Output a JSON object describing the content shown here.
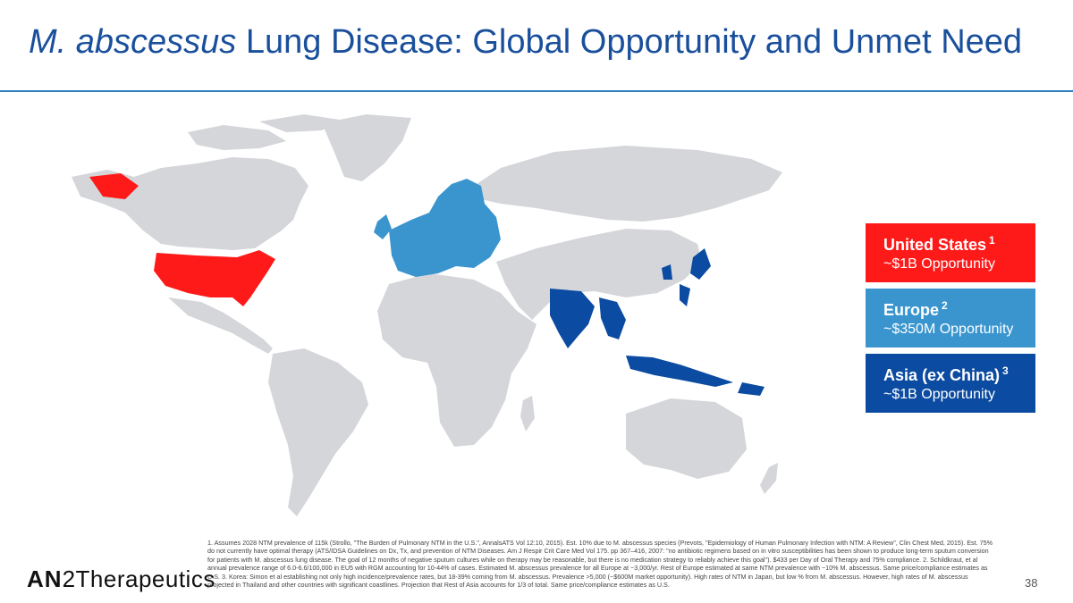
{
  "title": {
    "italic": "M. abscessus",
    "rest": " Lung Disease: Global Opportunity and Unmet Need"
  },
  "map_legend": [
    {
      "region": "United States",
      "note": "1",
      "value": "~$1B Opportunity",
      "color": "#ff1a1a"
    },
    {
      "region": "Europe",
      "note": "2",
      "value": "~$350M Opportunity",
      "color": "#3a95cf"
    },
    {
      "region": "Asia (ex China)",
      "note": "3",
      "value": "~$1B Opportunity",
      "color": "#0b4ba1"
    }
  ],
  "footnote": "1. Assumes 2028 NTM prevalence of 115k (Strollo, \"The Burden of Pulmonary NTM in the U.S.\", AnnalsATS Vol 12:10, 2015). Est. 10% due to M. abscessus species (Prevots, \"Epidemiology of Human Pulmonary Infection with NTM: A Review\", Clin Chest Med, 2015). Est. 75% do not currently have optimal therapy (ATS/IDSA Guidelines on Dx, Tx, and prevention of NTM Diseases. Am J Respir Crit Care Med Vol 175. pp 367–416, 2007: \"no antibiotic regimens based on in vitro susceptibilities has been shown to produce long-term sputum conversion for patients with M. abscessus lung disease. The goal of 12 months of negative sputum cultures while on therapy may be reasonable, but there is no medication strategy to reliably achieve this goal\"). $433 per Day of Oral Therapy and 75% compliance. 2. Schildkraut, et al annual prevalence range of 6.0-6.6/100,000 in EU5 with RGM accounting for 10-44% of cases. Estimated M. abscessus prevalence for all Europe at ~3,000/yr. Rest of Europe estimated at same NTM prevalence with ~10% M. abscessus. Same price/compliance estimates as U.S. 3. Korea: Simon et al establishing not only high incidence/prevalence rates, but 18-39% coming from M. abscessus. Prevalence >5,000 (~$600M market opportunity). High rates of NTM in Japan, but low % from M. abscessus. However, high rates of M. abscessus projected in Thailand and other countries with significant coastlines. Projection that Rest of Asia accounts for 1/3 of total. Same price/compliance estimates as U.S.",
  "logo": {
    "an": "AN",
    "two": "2",
    "rest": "Therapeutics"
  },
  "page_number": "38",
  "colors": {
    "title": "#1a4f9c",
    "land": "#d5d6da",
    "us": "#ff1a1a",
    "europe": "#3a95cf",
    "asia": "#0b4ba1"
  }
}
